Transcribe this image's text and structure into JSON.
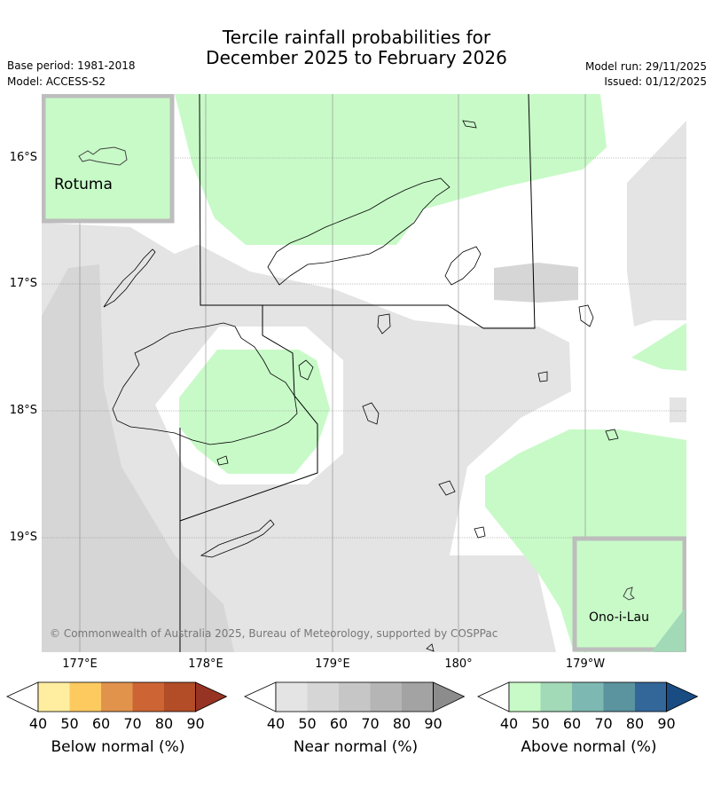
{
  "header": {
    "title_line1": "Tercile rainfall probabilities for",
    "title_line2": "December 2025 to February 2026",
    "base_period": "Base period: 1981-2018",
    "model": "Model: ACCESS-S2",
    "model_run": "Model run: 29/11/2025",
    "issued": "Issued: 01/12/2025"
  },
  "map": {
    "lat_labels": [
      "16°S",
      "17°S",
      "18°S",
      "19°S"
    ],
    "lon_labels": [
      "177°E",
      "178°E",
      "179°E",
      "180°",
      "179°W"
    ],
    "insets": {
      "rotuma": "Rotuma",
      "onoilau": "Ono-i-Lau"
    },
    "copyright": "© Commonwealth of Australia 2025, Bureau of Meteorology, supported by COSPPac",
    "colors": {
      "near_normal_40": "#e4e4e4",
      "near_normal_50": "#d6d6d6",
      "above_normal_40": "#c8fac8",
      "above_normal_50": "#a2d9b7",
      "inset_border": "#bdbdbd"
    }
  },
  "colorbars": [
    {
      "label": "Below normal (%)",
      "ticks": [
        "40",
        "50",
        "60",
        "70",
        "80",
        "90"
      ],
      "colors": [
        "#ffffff",
        "#ffeda0",
        "#fdca60",
        "#e1934b",
        "#cd6433",
        "#b24d27",
        "#973322"
      ]
    },
    {
      "label": "Near normal (%)",
      "ticks": [
        "40",
        "50",
        "60",
        "70",
        "80",
        "90"
      ],
      "colors": [
        "#ffffff",
        "#e4e4e4",
        "#d6d6d6",
        "#c6c6c6",
        "#b5b5b5",
        "#a3a3a3",
        "#8c8c8c"
      ]
    },
    {
      "label": "Above normal (%)",
      "ticks": [
        "40",
        "50",
        "60",
        "70",
        "80",
        "90"
      ],
      "colors": [
        "#ffffff",
        "#c8fac8",
        "#a2d9b7",
        "#7eb8b2",
        "#5b939f",
        "#336699",
        "#184c82"
      ]
    }
  ]
}
